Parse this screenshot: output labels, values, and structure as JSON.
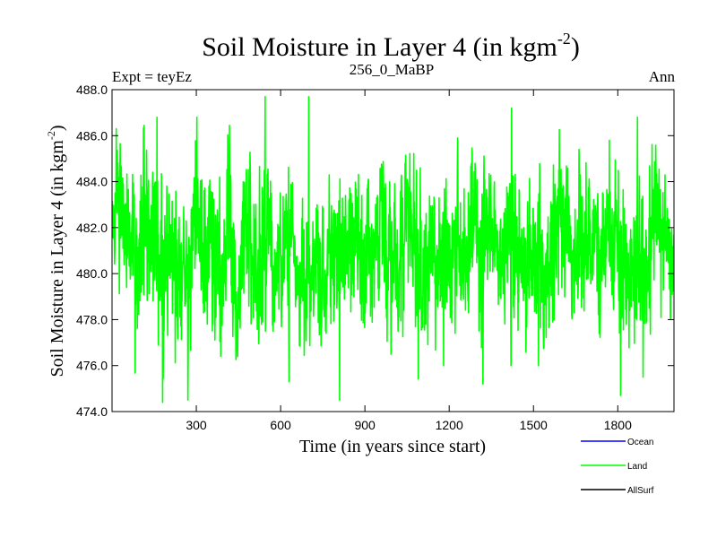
{
  "chart_data": {
    "type": "line",
    "title_main": "Soil Moisture in Layer 4 (in kgm",
    "title_sup": "-2",
    "title_end": ")",
    "subtitle_left": "Expt = teyEz",
    "subtitle_center": "256_0_MaBP",
    "subtitle_right": "Ann",
    "xlabel": "Time (in years since start)",
    "ylabel_main": "Soil Moisture in Layer 4 (in kgm",
    "ylabel_sup": "-2",
    "ylabel_end": ")",
    "xlim": [
      0,
      2000
    ],
    "ylim": [
      474,
      488
    ],
    "xticks": [
      300,
      600,
      900,
      1200,
      1500,
      1800
    ],
    "xtick_labels": [
      "300",
      "600",
      "900",
      "1200",
      "1500",
      "1800"
    ],
    "yticks": [
      474,
      476,
      478,
      480,
      482,
      484,
      486,
      488
    ],
    "ytick_labels": [
      "474.0",
      "476.0",
      "478.0",
      "480.0",
      "482.0",
      "484.0",
      "486.0",
      "488.0"
    ],
    "legend_position": "bottom-right",
    "series": [
      {
        "name": "Ocean",
        "color": "#0000ff",
        "values": []
      },
      {
        "name": "Land",
        "color": "#00ff00",
        "mean": 481.0,
        "values": []
      },
      {
        "name": "AllSurf",
        "color": "#000000",
        "values": []
      }
    ],
    "land_notable_points": [
      {
        "x": 15,
        "y": 486.3
      },
      {
        "x": 160,
        "y": 486.8
      },
      {
        "x": 180,
        "y": 474.4
      },
      {
        "x": 270,
        "y": 474.5
      },
      {
        "x": 545,
        "y": 487.7
      },
      {
        "x": 630,
        "y": 475.3
      },
      {
        "x": 700,
        "y": 487.7
      },
      {
        "x": 810,
        "y": 474.5
      },
      {
        "x": 1180,
        "y": 476.0
      },
      {
        "x": 1230,
        "y": 485.9
      },
      {
        "x": 1320,
        "y": 475.2
      },
      {
        "x": 1420,
        "y": 476.0
      },
      {
        "x": 1770,
        "y": 485.8
      },
      {
        "x": 1810,
        "y": 474.7
      },
      {
        "x": 1870,
        "y": 486.8
      },
      {
        "x": 1890,
        "y": 475.5
      }
    ]
  }
}
